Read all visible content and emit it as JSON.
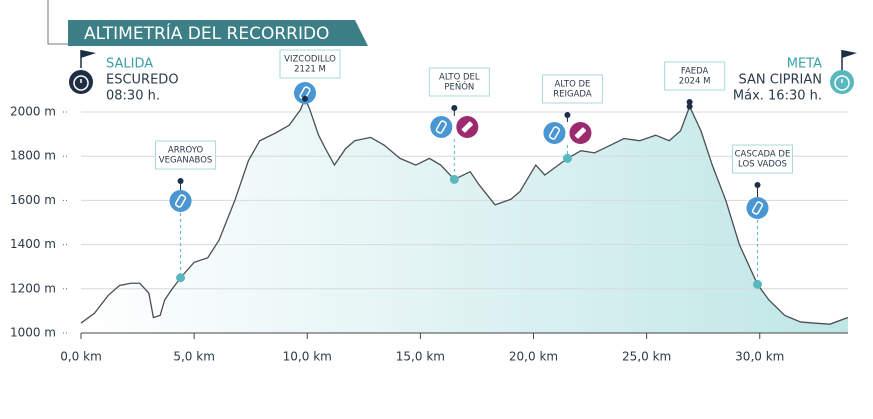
{
  "chart_data": {
    "type": "area",
    "title": "ALTIMETRÍA DEL RECORRIDO",
    "start": {
      "label": "SALIDA",
      "place": "ESCUREDO",
      "time": "08:30 h."
    },
    "finish": {
      "label": "META",
      "place": "SAN CIPRIAN",
      "time": "Máx. 16:30 h."
    },
    "x": [
      0,
      0.6,
      1.2,
      1.7,
      2.2,
      2.6,
      3.0,
      3.2,
      3.5,
      3.7,
      4.0,
      4.4,
      5.0,
      5.6,
      6.1,
      6.8,
      7.4,
      7.9,
      8.6,
      9.2,
      9.7,
      9.9,
      10.1,
      10.5,
      10.8,
      11.2,
      11.7,
      12.1,
      12.8,
      13.4,
      14.1,
      14.8,
      15.4,
      15.9,
      16.5,
      17.2,
      17.6,
      18.3,
      19.0,
      19.4,
      20.1,
      20.5,
      20.9,
      21.5,
      22.1,
      22.7,
      23.4,
      24.0,
      24.7,
      25.4,
      26.0,
      26.5,
      26.9,
      27.4,
      27.9,
      28.5,
      29.1,
      29.9,
      30.4,
      31.1,
      31.8,
      32.4,
      33.1,
      33.9
    ],
    "values": [
      1045,
      1090,
      1170,
      1215,
      1225,
      1225,
      1180,
      1070,
      1080,
      1150,
      1195,
      1250,
      1320,
      1340,
      1420,
      1600,
      1780,
      1870,
      1905,
      1940,
      2010,
      2060,
      2015,
      1895,
      1835,
      1760,
      1835,
      1870,
      1885,
      1850,
      1790,
      1760,
      1790,
      1760,
      1695,
      1730,
      1670,
      1580,
      1605,
      1640,
      1760,
      1715,
      1745,
      1790,
      1825,
      1815,
      1850,
      1880,
      1870,
      1895,
      1870,
      1915,
      2025,
      1915,
      1760,
      1600,
      1400,
      1220,
      1150,
      1080,
      1050,
      1045,
      1040,
      1070
    ],
    "color": "#4a4f55",
    "fill_colors": [
      "#ffffff",
      "#bfe6e6"
    ],
    "xlim": [
      0,
      33.9
    ],
    "ylim": [
      1000,
      2000
    ],
    "xticks": [
      {
        "value": 0,
        "label": "0,0 km"
      },
      {
        "value": 5,
        "label": "5,0 km"
      },
      {
        "value": 10,
        "label": "10,0 km"
      },
      {
        "value": 15,
        "label": "15,0 km"
      },
      {
        "value": 20,
        "label": "20,0 km"
      },
      {
        "value": 25,
        "label": "25,0 km"
      },
      {
        "value": 30,
        "label": "30,0 km"
      }
    ],
    "yticks": [
      {
        "value": 1000,
        "label": "1000 m"
      },
      {
        "value": 1200,
        "label": "1200 m"
      },
      {
        "value": 1400,
        "label": "1400 m"
      },
      {
        "value": 1600,
        "label": "1600 m"
      },
      {
        "value": 1800,
        "label": "1800 m"
      },
      {
        "value": 2000,
        "label": "2000 m"
      }
    ],
    "grid": true,
    "annotations": [
      {
        "label": [
          "ARROYO",
          "VEGANABOS"
        ],
        "x": 4.4,
        "y": 1250,
        "services": [
          "water"
        ]
      },
      {
        "label": [
          "VIZCODILLO",
          "2121 M"
        ],
        "x": 9.9,
        "y": 2060,
        "services": [
          "water"
        ]
      },
      {
        "label": [
          "ALTO DEL",
          "PEÑÓN"
        ],
        "x": 16.5,
        "y": 1695,
        "services": [
          "water",
          "food"
        ]
      },
      {
        "label": [
          "ALTO DE",
          "REIGADA"
        ],
        "x": 21.5,
        "y": 1790,
        "services": [
          "water",
          "food"
        ]
      },
      {
        "label": [
          "FAEDA",
          "2024 M"
        ],
        "x": 26.9,
        "y": 2025,
        "services": []
      },
      {
        "label": [
          "CASCADA DE",
          "LOS VADOS"
        ],
        "x": 29.9,
        "y": 1220,
        "services": [
          "water"
        ]
      }
    ]
  }
}
